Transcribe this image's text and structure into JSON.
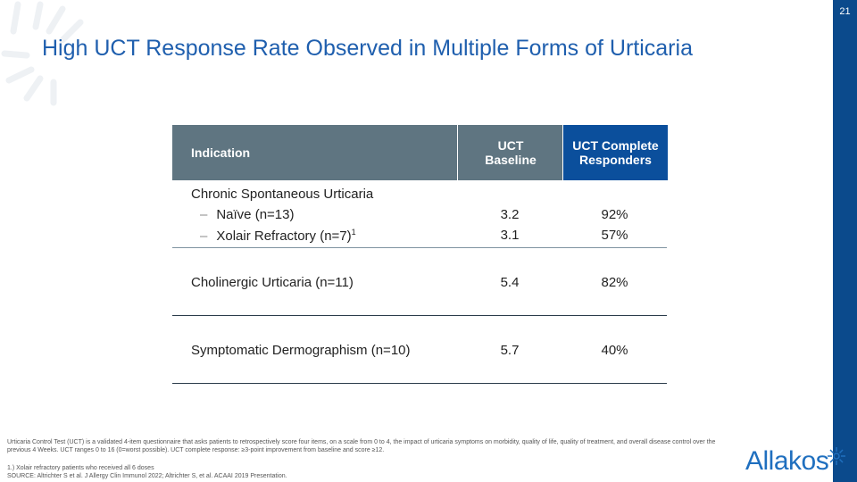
{
  "slide_number": "21",
  "title": "High UCT Response Rate Observed in Multiple Forms of Urticaria",
  "table": {
    "header": [
      "Indication",
      "UCT Baseline",
      "UCT Complete Responders"
    ],
    "groups": [
      {
        "label": "Chronic Spontaneous Urticaria",
        "rows": [
          {
            "label": "Naïve (n=13)",
            "baseline": "3.2",
            "responders": "92%"
          },
          {
            "label": "Xolair Refractory (n=7)",
            "footnote": "1",
            "baseline": "3.1",
            "responders": "57%"
          }
        ]
      },
      {
        "label": "Cholinergic Urticaria (n=11)",
        "baseline": "5.4",
        "responders": "82%"
      },
      {
        "label": "Symptomatic Dermographism (n=10)",
        "baseline": "5.7",
        "responders": "40%"
      }
    ]
  },
  "footnotes": [
    "Urticaria Control Test (UCT) is a validated 4-item questionnaire that asks patients to retrospectively score four items, on a scale from 0 to 4, the impact of urticaria symptoms on morbidity, quality of life, quality of treatment, and overall disease control over the previous 4 Weeks. UCT ranges 0 to 16 (0=worst possible).  UCT complete response: ≥3-point improvement from baseline and score ≥12.",
    "1.) Xolair refractory patients who received all 6 doses",
    "SOURCE: Altrichter S et al. J Allergy Clin Immunol 2022; Altrichter S, et al. ACAAI 2019 Presentation."
  ],
  "logo": "Allakos"
}
